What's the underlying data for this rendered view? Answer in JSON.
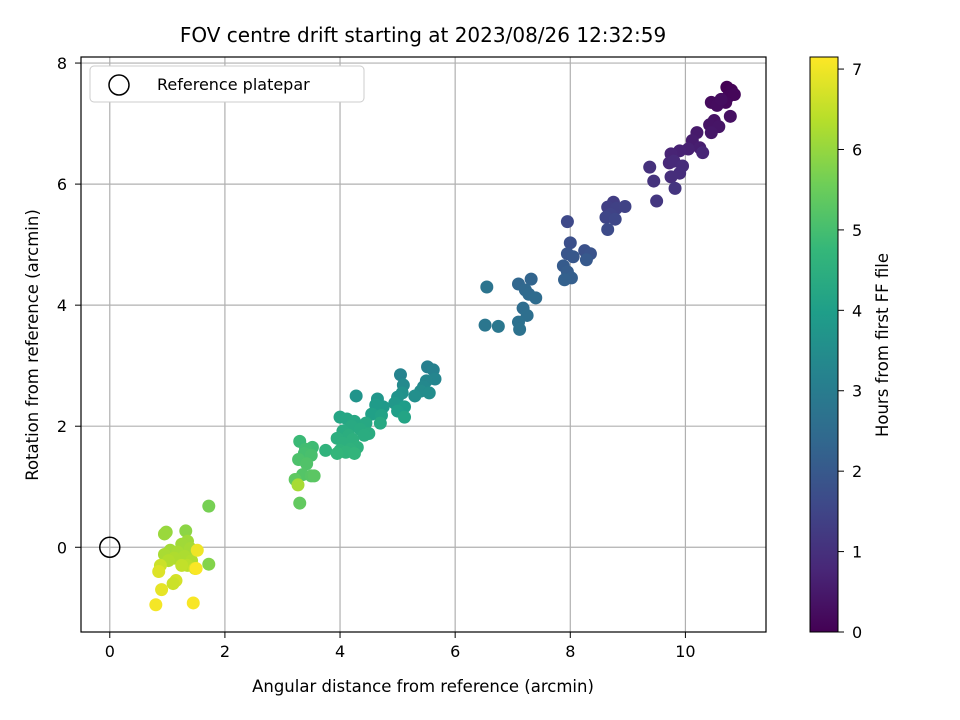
{
  "chart_data": {
    "type": "scatter",
    "title": "FOV centre drift starting at 2023/08/26 12:32:59",
    "xlabel": "Angular distance from reference (arcmin)",
    "ylabel": "Rotation from reference (arcmin)",
    "xlim": [
      -0.5,
      11.4
    ],
    "ylim": [
      -1.4,
      8.1
    ],
    "xticks": [
      0,
      2,
      4,
      6,
      8,
      10
    ],
    "yticks": [
      0,
      2,
      4,
      6,
      8
    ],
    "grid": true,
    "legend": {
      "placement": "top-left",
      "label": "Reference platepar",
      "marker": "open-circle"
    },
    "reference_point": {
      "x": 0,
      "y": 0
    },
    "colorbar": {
      "label": "Hours from first FF file",
      "colormap": "viridis",
      "min": 0,
      "max": 7.15,
      "ticks": [
        0,
        1,
        2,
        3,
        4,
        5,
        6,
        7
      ]
    },
    "colormap_stops": [
      "#440154",
      "#482878",
      "#3e4989",
      "#31688e",
      "#26828e",
      "#1f9e89",
      "#35b779",
      "#6ece58",
      "#b5de2b",
      "#fde725"
    ],
    "points": [
      {
        "x": 10.72,
        "y": 7.6,
        "c": 0.0
      },
      {
        "x": 10.8,
        "y": 7.55,
        "c": 0.05
      },
      {
        "x": 10.75,
        "y": 7.45,
        "c": 0.1
      },
      {
        "x": 10.85,
        "y": 7.48,
        "c": 0.12
      },
      {
        "x": 10.7,
        "y": 7.35,
        "c": 0.15
      },
      {
        "x": 10.45,
        "y": 7.35,
        "c": 0.2
      },
      {
        "x": 10.55,
        "y": 7.3,
        "c": 0.22
      },
      {
        "x": 10.62,
        "y": 7.4,
        "c": 0.25
      },
      {
        "x": 10.78,
        "y": 7.12,
        "c": 0.3
      },
      {
        "x": 10.5,
        "y": 7.05,
        "c": 0.35
      },
      {
        "x": 10.42,
        "y": 6.98,
        "c": 0.38
      },
      {
        "x": 10.58,
        "y": 6.95,
        "c": 0.4
      },
      {
        "x": 10.45,
        "y": 6.85,
        "c": 0.45
      },
      {
        "x": 10.2,
        "y": 6.85,
        "c": 0.5
      },
      {
        "x": 10.12,
        "y": 6.72,
        "c": 0.55
      },
      {
        "x": 10.25,
        "y": 6.6,
        "c": 0.6
      },
      {
        "x": 10.05,
        "y": 6.58,
        "c": 0.65
      },
      {
        "x": 9.9,
        "y": 6.55,
        "c": 0.68
      },
      {
        "x": 9.75,
        "y": 6.5,
        "c": 0.72
      },
      {
        "x": 10.3,
        "y": 6.52,
        "c": 0.75
      },
      {
        "x": 9.72,
        "y": 6.35,
        "c": 0.8
      },
      {
        "x": 9.8,
        "y": 6.38,
        "c": 0.85
      },
      {
        "x": 9.95,
        "y": 6.3,
        "c": 0.88
      },
      {
        "x": 9.9,
        "y": 6.18,
        "c": 0.92
      },
      {
        "x": 9.75,
        "y": 6.12,
        "c": 0.95
      },
      {
        "x": 9.38,
        "y": 6.28,
        "c": 1.0
      },
      {
        "x": 9.45,
        "y": 6.05,
        "c": 1.05
      },
      {
        "x": 9.82,
        "y": 5.93,
        "c": 1.1
      },
      {
        "x": 9.5,
        "y": 5.72,
        "c": 1.15
      },
      {
        "x": 8.75,
        "y": 5.7,
        "c": 1.3
      },
      {
        "x": 8.65,
        "y": 5.62,
        "c": 1.35
      },
      {
        "x": 8.8,
        "y": 5.6,
        "c": 1.4
      },
      {
        "x": 8.95,
        "y": 5.63,
        "c": 1.42
      },
      {
        "x": 8.7,
        "y": 5.5,
        "c": 1.45
      },
      {
        "x": 8.62,
        "y": 5.45,
        "c": 1.5
      },
      {
        "x": 8.78,
        "y": 5.42,
        "c": 1.55
      },
      {
        "x": 7.95,
        "y": 5.38,
        "c": 1.6
      },
      {
        "x": 8.65,
        "y": 5.25,
        "c": 1.65
      },
      {
        "x": 8.0,
        "y": 5.03,
        "c": 1.75
      },
      {
        "x": 8.25,
        "y": 4.9,
        "c": 1.8
      },
      {
        "x": 8.35,
        "y": 4.85,
        "c": 1.85
      },
      {
        "x": 7.95,
        "y": 4.85,
        "c": 1.9
      },
      {
        "x": 8.05,
        "y": 4.8,
        "c": 1.95
      },
      {
        "x": 8.28,
        "y": 4.75,
        "c": 2.0
      },
      {
        "x": 7.88,
        "y": 4.65,
        "c": 2.05
      },
      {
        "x": 7.95,
        "y": 4.55,
        "c": 2.1
      },
      {
        "x": 8.02,
        "y": 4.45,
        "c": 2.15
      },
      {
        "x": 7.9,
        "y": 4.42,
        "c": 2.2
      },
      {
        "x": 7.32,
        "y": 4.43,
        "c": 2.3
      },
      {
        "x": 7.1,
        "y": 4.35,
        "c": 2.35
      },
      {
        "x": 7.22,
        "y": 4.25,
        "c": 2.4
      },
      {
        "x": 7.28,
        "y": 4.18,
        "c": 2.45
      },
      {
        "x": 7.4,
        "y": 4.12,
        "c": 2.5
      },
      {
        "x": 7.18,
        "y": 3.95,
        "c": 2.55
      },
      {
        "x": 7.25,
        "y": 3.83,
        "c": 2.6
      },
      {
        "x": 7.1,
        "y": 3.72,
        "c": 2.65
      },
      {
        "x": 7.12,
        "y": 3.6,
        "c": 2.7
      },
      {
        "x": 6.55,
        "y": 4.3,
        "c": 2.75
      },
      {
        "x": 6.52,
        "y": 3.67,
        "c": 2.8
      },
      {
        "x": 6.75,
        "y": 3.65,
        "c": 2.85
      },
      {
        "x": 5.52,
        "y": 2.98,
        "c": 3.1
      },
      {
        "x": 5.62,
        "y": 2.93,
        "c": 3.15
      },
      {
        "x": 5.05,
        "y": 2.85,
        "c": 3.2
      },
      {
        "x": 5.65,
        "y": 2.78,
        "c": 3.25
      },
      {
        "x": 5.5,
        "y": 2.75,
        "c": 3.3
      },
      {
        "x": 5.45,
        "y": 2.65,
        "c": 3.35
      },
      {
        "x": 5.1,
        "y": 2.68,
        "c": 3.4
      },
      {
        "x": 5.4,
        "y": 2.58,
        "c": 3.45
      },
      {
        "x": 5.55,
        "y": 2.55,
        "c": 3.5
      },
      {
        "x": 5.3,
        "y": 2.5,
        "c": 3.55
      },
      {
        "x": 5.08,
        "y": 2.55,
        "c": 3.6
      },
      {
        "x": 5.0,
        "y": 2.48,
        "c": 3.65
      },
      {
        "x": 4.28,
        "y": 2.5,
        "c": 3.7
      },
      {
        "x": 4.65,
        "y": 2.45,
        "c": 3.75
      },
      {
        "x": 4.95,
        "y": 2.38,
        "c": 3.8
      },
      {
        "x": 4.75,
        "y": 2.32,
        "c": 3.85
      },
      {
        "x": 4.62,
        "y": 2.35,
        "c": 3.9
      },
      {
        "x": 5.12,
        "y": 2.32,
        "c": 3.95
      },
      {
        "x": 5.0,
        "y": 2.25,
        "c": 4.0
      },
      {
        "x": 4.55,
        "y": 2.2,
        "c": 4.05
      },
      {
        "x": 4.72,
        "y": 2.18,
        "c": 4.1
      },
      {
        "x": 5.12,
        "y": 2.15,
        "c": 4.15
      },
      {
        "x": 4.0,
        "y": 2.15,
        "c": 4.2
      },
      {
        "x": 4.12,
        "y": 2.12,
        "c": 4.22
      },
      {
        "x": 4.25,
        "y": 2.08,
        "c": 4.25
      },
      {
        "x": 4.45,
        "y": 2.05,
        "c": 4.28
      },
      {
        "x": 4.7,
        "y": 2.05,
        "c": 4.3
      },
      {
        "x": 4.2,
        "y": 2.0,
        "c": 4.32
      },
      {
        "x": 4.35,
        "y": 1.95,
        "c": 4.35
      },
      {
        "x": 4.05,
        "y": 1.92,
        "c": 4.38
      },
      {
        "x": 4.5,
        "y": 1.88,
        "c": 4.4
      },
      {
        "x": 4.42,
        "y": 1.85,
        "c": 4.42
      },
      {
        "x": 4.15,
        "y": 1.85,
        "c": 4.45
      },
      {
        "x": 3.95,
        "y": 1.8,
        "c": 4.48
      },
      {
        "x": 4.22,
        "y": 1.78,
        "c": 4.5
      },
      {
        "x": 4.05,
        "y": 1.72,
        "c": 4.52
      },
      {
        "x": 4.3,
        "y": 1.65,
        "c": 4.55
      },
      {
        "x": 4.18,
        "y": 1.62,
        "c": 4.58
      },
      {
        "x": 4.0,
        "y": 1.6,
        "c": 4.6
      },
      {
        "x": 3.75,
        "y": 1.6,
        "c": 4.62
      },
      {
        "x": 4.1,
        "y": 1.57,
        "c": 4.65
      },
      {
        "x": 4.25,
        "y": 1.55,
        "c": 4.68
      },
      {
        "x": 3.95,
        "y": 1.55,
        "c": 4.7
      },
      {
        "x": 3.3,
        "y": 1.75,
        "c": 4.85
      },
      {
        "x": 3.52,
        "y": 1.65,
        "c": 4.9
      },
      {
        "x": 3.4,
        "y": 1.62,
        "c": 4.95
      },
      {
        "x": 3.38,
        "y": 1.55,
        "c": 5.0
      },
      {
        "x": 3.5,
        "y": 1.52,
        "c": 5.05
      },
      {
        "x": 3.28,
        "y": 1.45,
        "c": 5.1
      },
      {
        "x": 3.42,
        "y": 1.38,
        "c": 5.15
      },
      {
        "x": 3.35,
        "y": 1.2,
        "c": 5.2
      },
      {
        "x": 3.5,
        "y": 1.18,
        "c": 5.25
      },
      {
        "x": 3.55,
        "y": 1.18,
        "c": 5.3
      },
      {
        "x": 3.22,
        "y": 1.12,
        "c": 5.35
      },
      {
        "x": 3.3,
        "y": 0.73,
        "c": 5.4
      },
      {
        "x": 1.72,
        "y": 0.68,
        "c": 5.65
      },
      {
        "x": 3.27,
        "y": 1.03,
        "c": 6.2
      },
      {
        "x": 1.32,
        "y": 0.27,
        "c": 5.9
      },
      {
        "x": 0.98,
        "y": 0.25,
        "c": 6.0
      },
      {
        "x": 0.95,
        "y": 0.22,
        "c": 6.05
      },
      {
        "x": 1.35,
        "y": 0.1,
        "c": 6.1
      },
      {
        "x": 1.25,
        "y": 0.05,
        "c": 6.12
      },
      {
        "x": 1.05,
        "y": -0.05,
        "c": 6.15
      },
      {
        "x": 1.4,
        "y": -0.02,
        "c": 6.18
      },
      {
        "x": 1.18,
        "y": -0.08,
        "c": 6.2
      },
      {
        "x": 0.95,
        "y": -0.12,
        "c": 6.22
      },
      {
        "x": 1.3,
        "y": -0.15,
        "c": 6.25
      },
      {
        "x": 1.12,
        "y": -0.18,
        "c": 6.28
      },
      {
        "x": 1.42,
        "y": -0.22,
        "c": 6.3
      },
      {
        "x": 1.02,
        "y": -0.22,
        "c": 6.32
      },
      {
        "x": 1.72,
        "y": -0.28,
        "c": 5.8
      },
      {
        "x": 1.35,
        "y": -0.3,
        "c": 6.4
      },
      {
        "x": 1.25,
        "y": -0.3,
        "c": 6.5
      },
      {
        "x": 0.88,
        "y": -0.3,
        "c": 6.6
      },
      {
        "x": 1.48,
        "y": -0.35,
        "c": 6.7
      },
      {
        "x": 0.85,
        "y": -0.4,
        "c": 6.8
      },
      {
        "x": 1.52,
        "y": -0.05,
        "c": 7.0
      },
      {
        "x": 1.15,
        "y": -0.55,
        "c": 6.7
      },
      {
        "x": 1.1,
        "y": -0.6,
        "c": 6.6
      },
      {
        "x": 0.9,
        "y": -0.7,
        "c": 6.9
      },
      {
        "x": 0.8,
        "y": -0.95,
        "c": 7.05
      },
      {
        "x": 1.45,
        "y": -0.92,
        "c": 7.1
      },
      {
        "x": 1.5,
        "y": -0.35,
        "c": 7.12
      }
    ]
  }
}
